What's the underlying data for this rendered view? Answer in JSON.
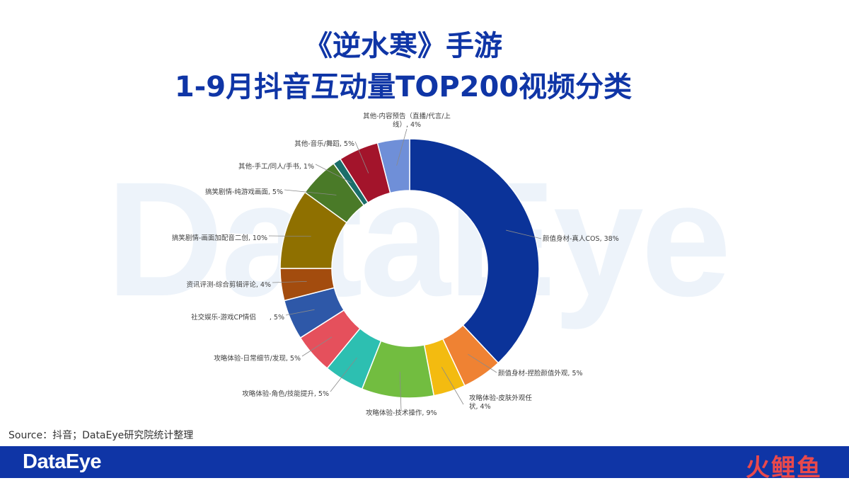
{
  "watermark": "DataEye",
  "title": {
    "line1": "《逆水寒》手游",
    "line2": "1-9月抖音互动量TOP200视频分类"
  },
  "source": "Source：抖音；DataEye研究院统计整理",
  "footer": {
    "logo": "DataEye",
    "brand": "火鲤鱼"
  },
  "chart_data": {
    "type": "pie",
    "style": "donut",
    "title": "",
    "slices": [
      {
        "label": [
          "颜值身材-真人COS, 38%"
        ],
        "value": 38,
        "color": "#0b3399"
      },
      {
        "label": [
          "颜值身材-捏脸颜值外观, 5%"
        ],
        "value": 5,
        "color": "#ef8233"
      },
      {
        "label": [
          "攻略体验-皮肤外观任",
          "状, 4%"
        ],
        "value": 4,
        "color": "#f3bb10"
      },
      {
        "label": [
          "攻略体验-技术操作, 9%"
        ],
        "value": 9,
        "color": "#72bd40"
      },
      {
        "label": [
          "攻略体验-角色/技能提升, 5%"
        ],
        "value": 5,
        "color": "#2dbfb1"
      },
      {
        "label": [
          "攻略体验-日常细节/发现, 5%"
        ],
        "value": 5,
        "color": "#e5505c"
      },
      {
        "label": [
          "社交娱乐-游戏CP情侣　　, 5%"
        ],
        "value": 5,
        "color": "#2e58a8"
      },
      {
        "label": [
          "资讯评测-综合剪辑评论, 4%"
        ],
        "value": 4,
        "color": "#a34c0e"
      },
      {
        "label": [
          "搞笑剧情-画面加配音二创, 10%"
        ],
        "value": 10,
        "color": "#8f7000"
      },
      {
        "label": [
          "搞笑剧情-纯游戏画面, 5%"
        ],
        "value": 5,
        "color": "#4a7a28"
      },
      {
        "label": [
          "其他-手工/同人/手书, 1%"
        ],
        "value": 1,
        "color": "#1b6e6a"
      },
      {
        "label": [
          "其他-音乐/舞蹈, 5%"
        ],
        "value": 5,
        "color": "#a3142b"
      },
      {
        "label": [
          "其他-内容预告（直播/代言/上",
          "线）, 4%"
        ],
        "value": 4,
        "color": "#6f8fd8"
      }
    ]
  }
}
